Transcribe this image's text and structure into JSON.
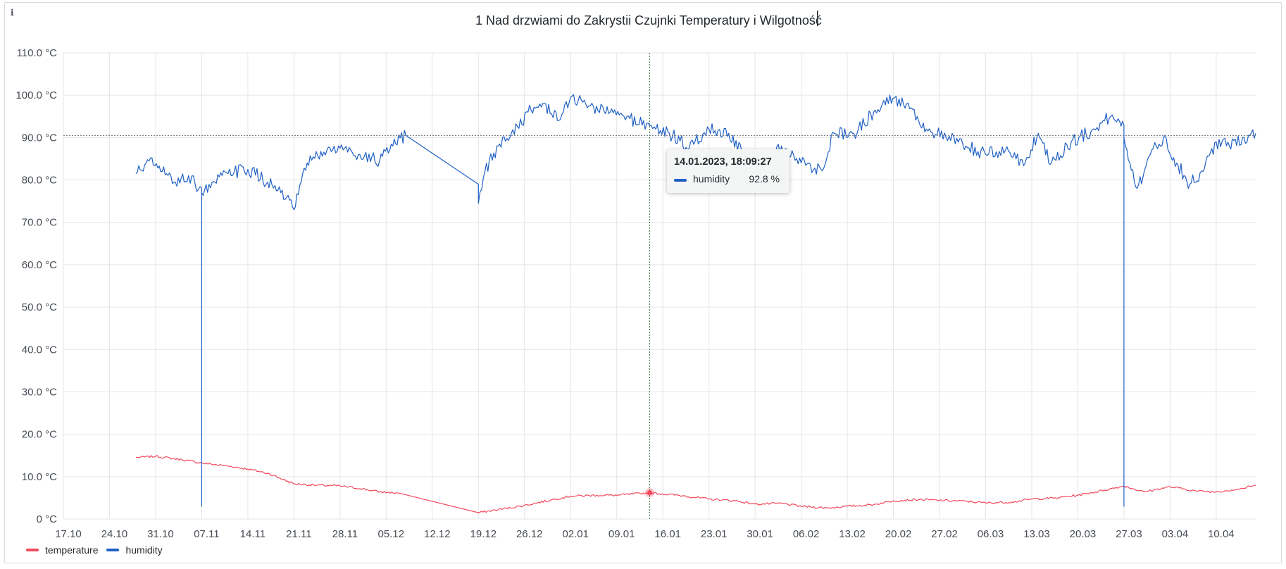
{
  "panel": {
    "info_icon": "i",
    "title": "1 Nad drzwiami do Zakrystii Czujnki Temperatury i Wilgotność"
  },
  "tooltip": {
    "time": "14.01.2023, 18:09:27",
    "series_name": "humidity",
    "value": "92.8 %"
  },
  "chart_data": {
    "type": "line",
    "title": "1 Nad drzwiami do Zakrystii Czujnki Temperatury i Wilgotność",
    "xlabel": "",
    "ylabel": "",
    "y_unit": "°C",
    "ylim": [
      0,
      110
    ],
    "y_ticks": [
      "0 °C",
      "10.0 °C",
      "20.0 °C",
      "30.0 °C",
      "40.0 °C",
      "50.0 °C",
      "60.0 °C",
      "70.0 °C",
      "80.0 °C",
      "90.0 °C",
      "100.0 °C",
      "110.0 °C"
    ],
    "x_ticks": [
      "17.10",
      "24.10",
      "31.10",
      "07.11",
      "14.11",
      "21.11",
      "28.11",
      "05.12",
      "12.12",
      "19.12",
      "26.12",
      "02.01",
      "09.01",
      "16.01",
      "23.01",
      "30.01",
      "06.02",
      "13.02",
      "20.02",
      "27.02",
      "06.03",
      "13.03",
      "20.03",
      "27.03",
      "03.04",
      "10.04"
    ],
    "x_range": [
      "2022-10-17",
      "2023-04-16"
    ],
    "grid": true,
    "legend_placement": "bottom-left",
    "crosshair": {
      "x": "2023-01-14",
      "y": 90.5
    },
    "series": [
      {
        "name": "temperature",
        "color": "#f2495c",
        "x": [
          "2022-10-28",
          "2022-10-31",
          "2022-11-04",
          "2022-11-07",
          "2022-11-11",
          "2022-11-14",
          "2022-11-17",
          "2022-11-21",
          "2022-11-24",
          "2022-11-28",
          "2022-12-01",
          "2022-12-04",
          "2022-12-07",
          "2022-12-19",
          "2022-12-22",
          "2022-12-26",
          "2022-12-30",
          "2023-01-02",
          "2023-01-06",
          "2023-01-09",
          "2023-01-14",
          "2023-01-19",
          "2023-01-23",
          "2023-01-27",
          "2023-01-30",
          "2023-02-03",
          "2023-02-06",
          "2023-02-10",
          "2023-02-13",
          "2023-02-17",
          "2023-02-20",
          "2023-02-24",
          "2023-02-27",
          "2023-03-03",
          "2023-03-06",
          "2023-03-10",
          "2023-03-13",
          "2023-03-17",
          "2023-03-20",
          "2023-03-24",
          "2023-03-27",
          "2023-03-30",
          "2023-04-03",
          "2023-04-07",
          "2023-04-10",
          "2023-04-14",
          "2023-04-16"
        ],
        "values": [
          14.5,
          14.8,
          14.0,
          13.2,
          12.5,
          11.8,
          10.8,
          8.3,
          8.0,
          7.8,
          7.2,
          6.4,
          6.1,
          1.5,
          2.2,
          3.2,
          4.5,
          5.4,
          5.6,
          5.6,
          6.2,
          5.5,
          4.7,
          4.3,
          3.5,
          3.7,
          3.0,
          2.6,
          3.0,
          3.4,
          4.3,
          4.6,
          4.4,
          4.2,
          3.8,
          4.0,
          4.7,
          5.0,
          5.6,
          6.8,
          7.8,
          6.4,
          7.6,
          6.6,
          6.4,
          7.2,
          8.0
        ]
      },
      {
        "name": "humidity",
        "color": "#1f60c4",
        "x": [
          "2022-10-28",
          "2022-10-30",
          "2022-11-01",
          "2022-11-03",
          "2022-11-05",
          "2022-11-06",
          "2022-11-07",
          "2022-11-07",
          "2022-11-07",
          "2022-11-09",
          "2022-11-11",
          "2022-11-14",
          "2022-11-17",
          "2022-11-19",
          "2022-11-21",
          "2022-11-23",
          "2022-11-26",
          "2022-11-28",
          "2022-12-01",
          "2022-12-04",
          "2022-12-06",
          "2022-12-08",
          "2022-12-19",
          "2022-12-19",
          "2022-12-20",
          "2022-12-22",
          "2022-12-24",
          "2022-12-27",
          "2022-12-29",
          "2022-12-31",
          "2023-01-02",
          "2023-01-05",
          "2023-01-08",
          "2023-01-11",
          "2023-01-14",
          "2023-01-17",
          "2023-01-20",
          "2023-01-23",
          "2023-01-26",
          "2023-01-28",
          "2023-01-31",
          "2023-02-03",
          "2023-02-06",
          "2023-02-09",
          "2023-02-11",
          "2023-02-14",
          "2023-02-17",
          "2023-02-19",
          "2023-02-22",
          "2023-02-25",
          "2023-02-28",
          "2023-03-03",
          "2023-03-06",
          "2023-03-09",
          "2023-03-12",
          "2023-03-14",
          "2023-03-16",
          "2023-03-19",
          "2023-03-22",
          "2023-03-25",
          "2023-03-27",
          "2023-03-27",
          "2023-03-27",
          "2023-03-29",
          "2023-03-31",
          "2023-04-02",
          "2023-04-04",
          "2023-04-06",
          "2023-04-08",
          "2023-04-10",
          "2023-04-12",
          "2023-04-14",
          "2023-04-16"
        ],
        "values": [
          81.5,
          84.5,
          82.0,
          79.5,
          81.0,
          79.0,
          78.0,
          3.0,
          77.0,
          79.5,
          81.5,
          82.5,
          79.5,
          77.0,
          73.0,
          84.0,
          87.0,
          87.5,
          86.0,
          84.5,
          88.0,
          90.5,
          79.0,
          74.5,
          82.0,
          88.0,
          91.0,
          96.5,
          98.0,
          94.0,
          99.5,
          97.5,
          96.0,
          94.5,
          92.8,
          91.0,
          87.5,
          92.0,
          91.0,
          86.5,
          82.0,
          88.0,
          84.0,
          82.5,
          91.0,
          91.0,
          96.0,
          99.5,
          98.0,
          92.0,
          90.0,
          88.0,
          86.0,
          87.0,
          84.0,
          91.0,
          84.0,
          89.0,
          91.5,
          95.0,
          93.0,
          3.0,
          90.0,
          78.0,
          86.0,
          90.0,
          84.0,
          79.0,
          82.0,
          89.0,
          88.0,
          90.0,
          91.0
        ]
      }
    ]
  },
  "legend": [
    {
      "label": "temperature",
      "color": "#f2495c"
    },
    {
      "label": "humidity",
      "color": "#1f60c4"
    }
  ]
}
